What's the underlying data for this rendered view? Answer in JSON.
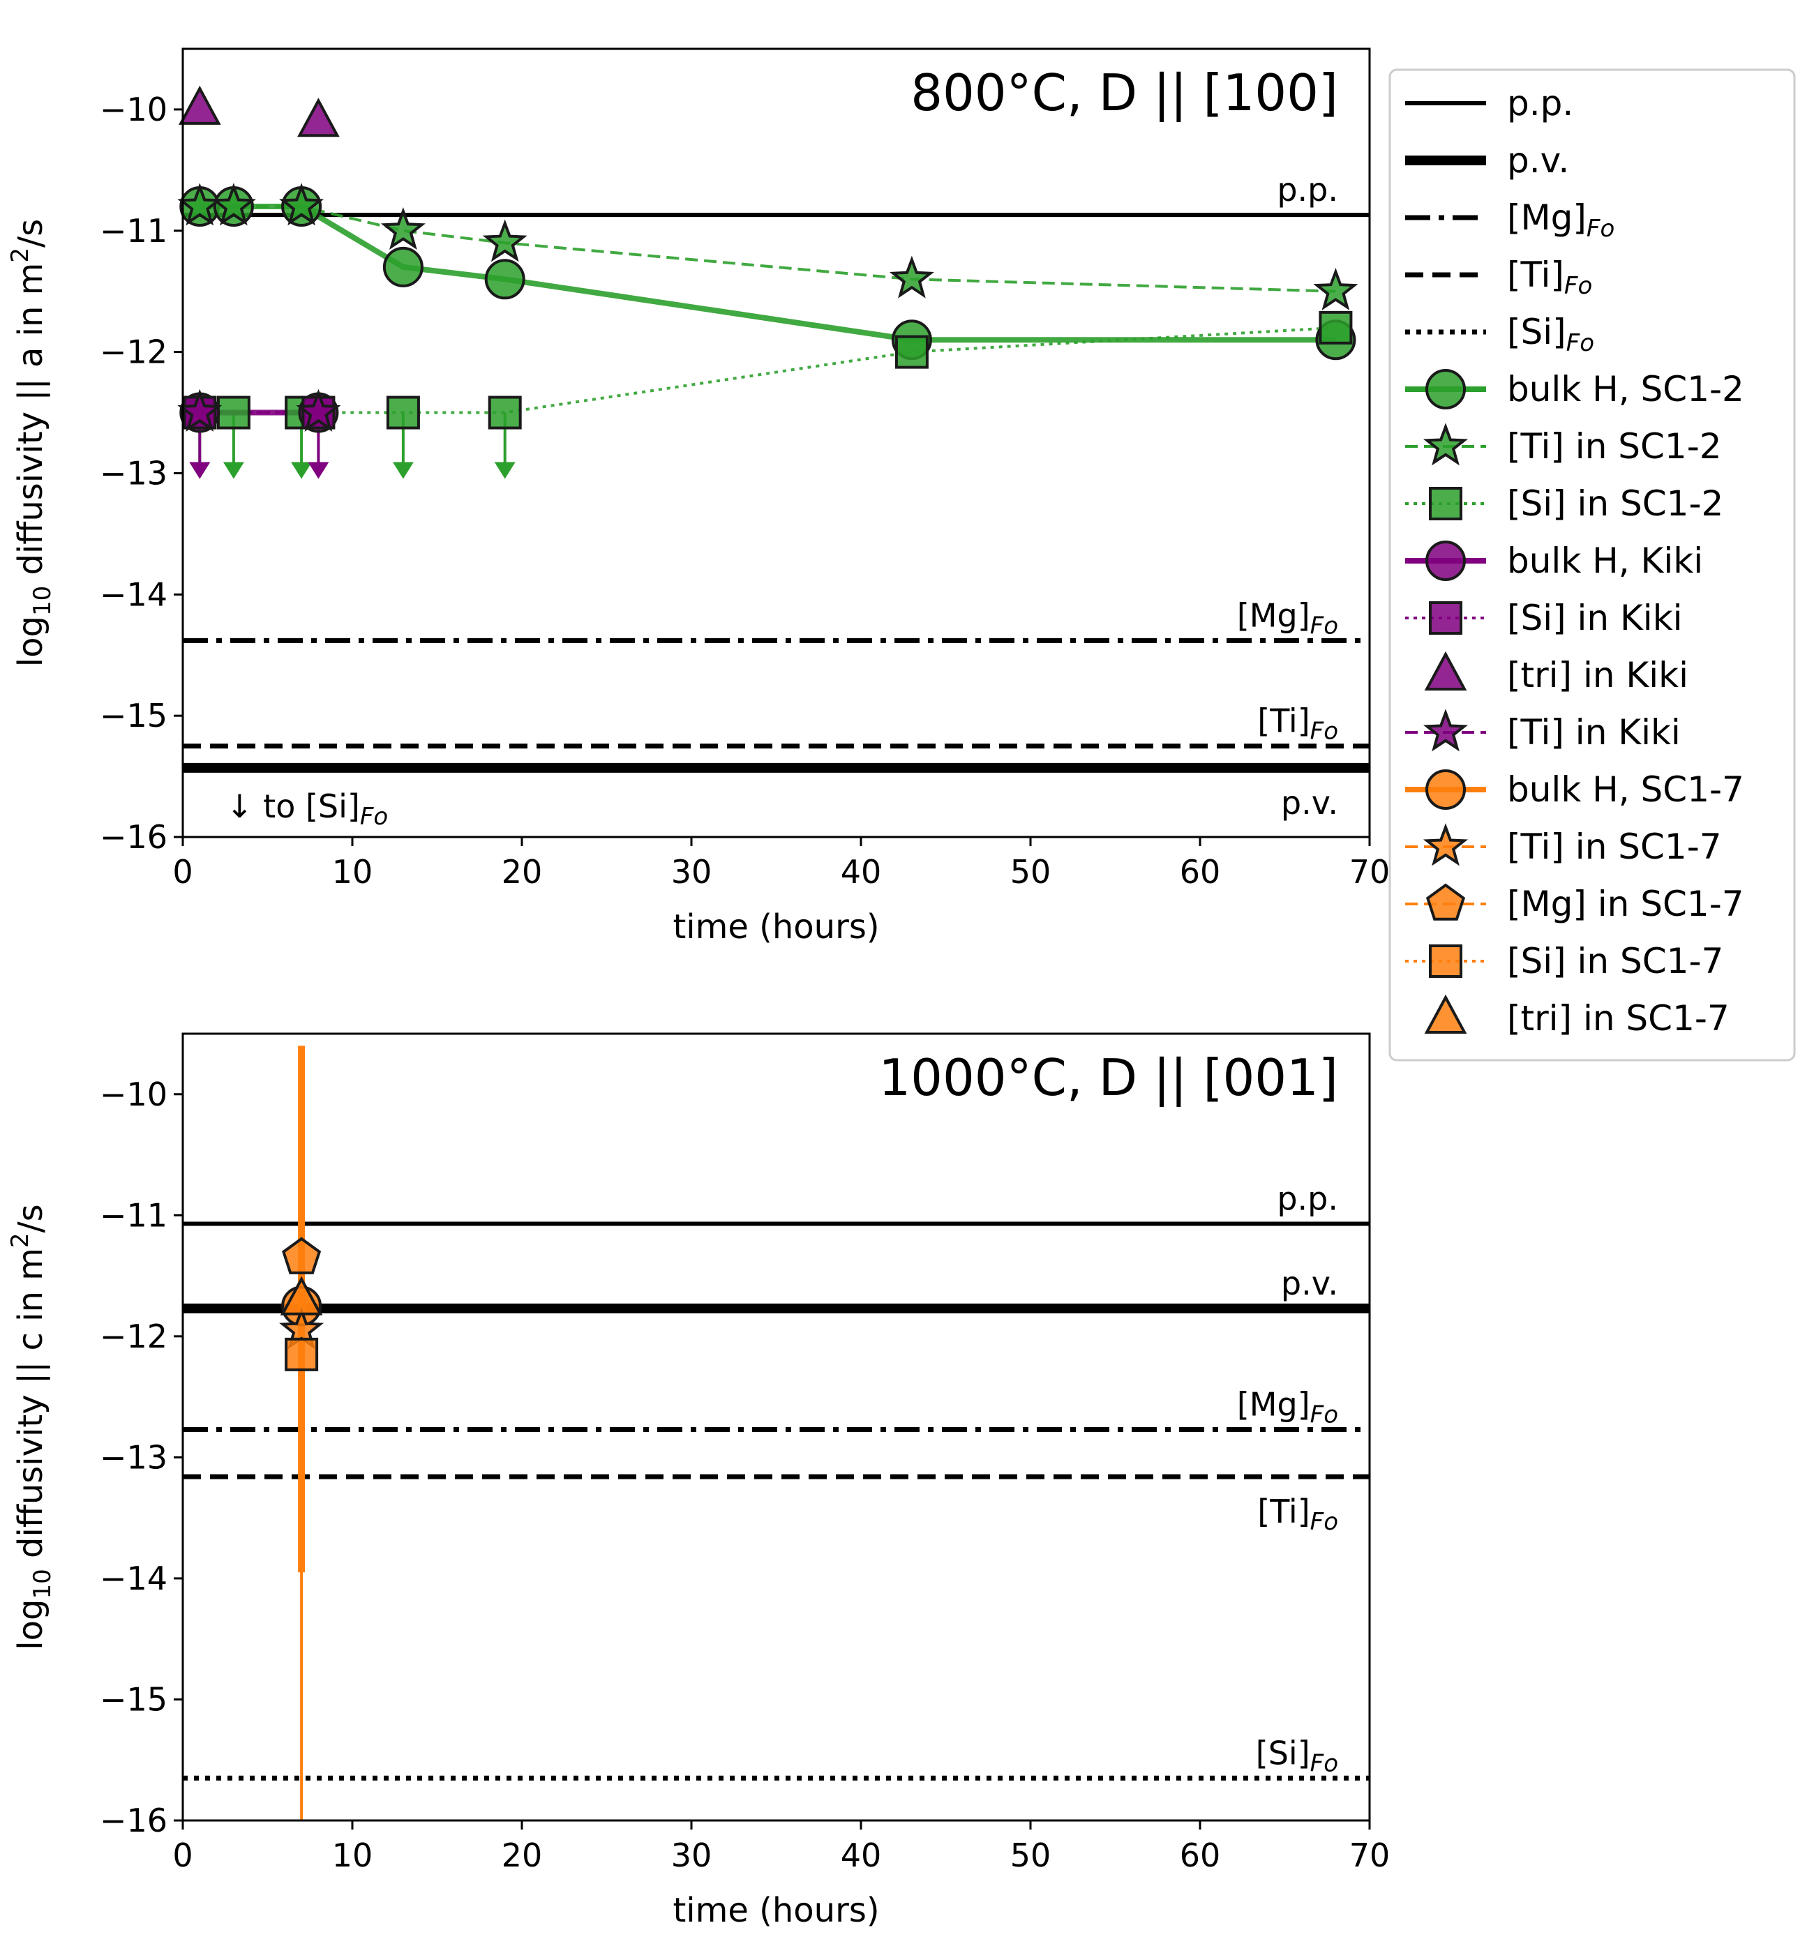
{
  "colors": {
    "green": "#2ca02c",
    "purple": "#800080",
    "orange": "#ff7f0e",
    "black": "#000000"
  },
  "chart_data": [
    {
      "type": "scatter",
      "title": "800°C, D || [100]",
      "xlabel": "time (hours)",
      "ylabel": "log10 diffusivity || a in m2/s",
      "xlim": [
        0,
        70
      ],
      "ylim": [
        -16,
        -9.5
      ],
      "xticks": [
        "0",
        "10",
        "20",
        "30",
        "40",
        "50",
        "60",
        "70"
      ],
      "yticks": [
        "−10",
        "−11",
        "−12",
        "−13",
        "−14",
        "−15",
        "−16"
      ],
      "reference_lines": [
        {
          "name": "p.p.",
          "value": -10.87,
          "style": "solid",
          "label_side": "above"
        },
        {
          "name": "p.v.",
          "value": -15.43,
          "style": "thick",
          "label_side": "below"
        },
        {
          "name": "[Mg]Fo",
          "value": -14.38,
          "style": "dashdot",
          "label_side": "above"
        },
        {
          "name": "[Ti]Fo",
          "value": -15.25,
          "style": "dashed",
          "label_side": "above"
        }
      ],
      "annotation": {
        "arrow": "↓",
        "text": "to [Si]",
        "sub": "Fo"
      },
      "series": [
        {
          "name": "bulk H, SC1-2",
          "color": "green",
          "marker": "circle",
          "line": "solid",
          "x": [
            1,
            3,
            7,
            13,
            19,
            43,
            68
          ],
          "y": [
            -10.8,
            -10.8,
            -10.8,
            -11.3,
            -11.4,
            -11.9,
            -11.9
          ]
        },
        {
          "name": "[Ti] in SC1-2",
          "color": "green",
          "marker": "star",
          "line": "dashed",
          "x": [
            1,
            3,
            7,
            13,
            19,
            43,
            68
          ],
          "y": [
            -10.8,
            -10.8,
            -10.8,
            -11.0,
            -11.1,
            -11.4,
            -11.5
          ]
        },
        {
          "name": "[Si] in SC1-2",
          "color": "green",
          "marker": "square",
          "line": "dotted",
          "upper_limit_to": 43,
          "x": [
            1,
            3,
            7,
            13,
            19,
            43,
            68
          ],
          "y": [
            -12.5,
            -12.5,
            -12.5,
            -12.5,
            -12.5,
            -12.0,
            -11.8
          ]
        },
        {
          "name": "bulk H, Kiki",
          "color": "purple",
          "marker": "circle",
          "line": "solid",
          "x": [
            1,
            8
          ],
          "y": [
            -12.5,
            -12.5
          ]
        },
        {
          "name": "[Si] in Kiki",
          "color": "purple",
          "marker": "square",
          "line": "dotted",
          "x": [
            1,
            8
          ],
          "y": [
            -12.5,
            -12.5
          ]
        },
        {
          "name": "[tri] in Kiki",
          "color": "purple",
          "marker": "triangle",
          "line": "none",
          "x": [
            1,
            8
          ],
          "y": [
            -10.0,
            -10.1
          ]
        },
        {
          "name": "[Ti] in Kiki",
          "color": "purple",
          "marker": "star",
          "line": "dashed",
          "upper_limit": true,
          "x": [
            1,
            8
          ],
          "y": [
            -12.5,
            -12.5
          ]
        }
      ]
    },
    {
      "type": "scatter",
      "title": "1000°C, D || [001]",
      "xlabel": "time (hours)",
      "ylabel": "log10 diffusivity || c in m2/s",
      "xlim": [
        0,
        70
      ],
      "ylim": [
        -16,
        -9.5
      ],
      "xticks": [
        "0",
        "10",
        "20",
        "30",
        "40",
        "50",
        "60",
        "70"
      ],
      "yticks": [
        "−10",
        "−11",
        "−12",
        "−13",
        "−14",
        "−15",
        "−16"
      ],
      "reference_lines": [
        {
          "name": "p.p.",
          "value": -11.07,
          "style": "solid",
          "label_side": "above"
        },
        {
          "name": "p.v.",
          "value": -11.77,
          "style": "thick",
          "label_side": "above"
        },
        {
          "name": "[Mg]Fo",
          "value": -12.77,
          "style": "dashdot",
          "label_side": "above"
        },
        {
          "name": "[Ti]Fo",
          "value": -13.16,
          "style": "dashed",
          "label_side": "below"
        },
        {
          "name": "[Si]Fo",
          "value": -15.65,
          "style": "dotted",
          "label_side": "above"
        }
      ],
      "series": [
        {
          "name": "bulk H, SC1-7",
          "color": "orange",
          "marker": "circle",
          "line": "solid",
          "x": [
            7
          ],
          "y": [
            -11.75
          ],
          "err_low": [
            -13.95
          ],
          "err_high": [
            -9.6
          ]
        },
        {
          "name": "[Ti] in SC1-7",
          "color": "orange",
          "marker": "star",
          "line": "dashed",
          "x": [
            7
          ],
          "y": [
            -11.95
          ]
        },
        {
          "name": "[Mg] in SC1-7",
          "color": "orange",
          "marker": "pentagon",
          "line": "dashed",
          "x": [
            7
          ],
          "y": [
            -11.35
          ]
        },
        {
          "name": "[Si] in SC1-7",
          "color": "orange",
          "marker": "square",
          "line": "dotted",
          "x": [
            7
          ],
          "y": [
            -12.15
          ],
          "err_low": [
            -16.0
          ],
          "err_high": [
            -9.6
          ]
        },
        {
          "name": "[tri] in SC1-7",
          "color": "orange",
          "marker": "triangle",
          "line": "none",
          "x": [
            7
          ],
          "y": [
            -11.7
          ]
        }
      ]
    }
  ],
  "legend": {
    "placement": "right of top panel",
    "entries": [
      {
        "label": "p.p.",
        "color": "black",
        "line": "solid",
        "marker": "none"
      },
      {
        "label": "p.v.",
        "color": "black",
        "line": "thick",
        "marker": "none"
      },
      {
        "label": "[Mg]",
        "sub": "Fo",
        "color": "black",
        "line": "dashdot",
        "marker": "none"
      },
      {
        "label": "[Ti]",
        "sub": "Fo",
        "color": "black",
        "line": "dashed",
        "marker": "none"
      },
      {
        "label": "[Si]",
        "sub": "Fo",
        "color": "black",
        "line": "dotted",
        "marker": "none"
      },
      {
        "label": "bulk H, SC1-2",
        "color": "green",
        "line": "solid",
        "marker": "circle"
      },
      {
        "label": "[Ti] in SC1-2",
        "color": "green",
        "line": "dashed",
        "marker": "star"
      },
      {
        "label": "[Si] in SC1-2",
        "color": "green",
        "line": "dotted",
        "marker": "square"
      },
      {
        "label": "bulk H, Kiki",
        "color": "purple",
        "line": "solid",
        "marker": "circle"
      },
      {
        "label": "[Si] in Kiki",
        "color": "purple",
        "line": "dotted",
        "marker": "square"
      },
      {
        "label": "[tri] in Kiki",
        "color": "purple",
        "line": "none",
        "marker": "triangle"
      },
      {
        "label": "[Ti] in Kiki",
        "color": "purple",
        "line": "dashed",
        "marker": "star"
      },
      {
        "label": "bulk H, SC1-7",
        "color": "orange",
        "line": "solid",
        "marker": "circle"
      },
      {
        "label": "[Ti] in SC1-7",
        "color": "orange",
        "line": "dashed",
        "marker": "star"
      },
      {
        "label": "[Mg] in SC1-7",
        "color": "orange",
        "line": "dashed",
        "marker": "pentagon"
      },
      {
        "label": "[Si] in SC1-7",
        "color": "orange",
        "line": "dotted",
        "marker": "square"
      },
      {
        "label": "[tri] in SC1-7",
        "color": "orange",
        "line": "none",
        "marker": "triangle"
      }
    ]
  }
}
